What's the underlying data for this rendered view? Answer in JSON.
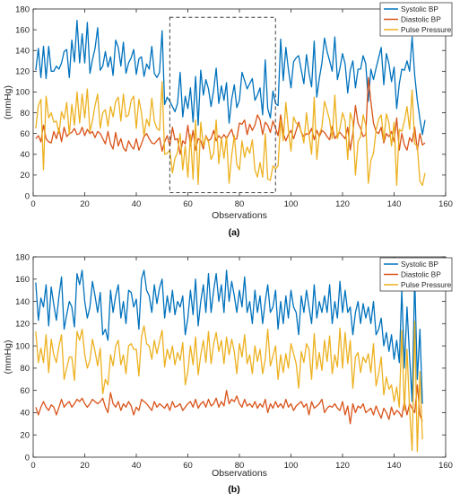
{
  "colors": {
    "systolic": "#0072BD",
    "diastolic": "#D95319",
    "pulse": "#EDB120",
    "axis": "#262626",
    "box": "#404040"
  },
  "chart_data": [
    {
      "type": "line",
      "panel_label": "(a)",
      "xlabel": "Observations",
      "ylabel": "(mmHg)",
      "xlim": [
        0,
        160
      ],
      "ylim": [
        0,
        180
      ],
      "xticks": [
        0,
        20,
        40,
        60,
        80,
        100,
        120,
        140,
        160
      ],
      "yticks": [
        0,
        20,
        40,
        60,
        80,
        100,
        120,
        140,
        160,
        180
      ],
      "grid": false,
      "legend_position": "top-right",
      "highlight_box": {
        "x": [
          53,
          94
        ],
        "y": [
          3,
          172
        ],
        "style": "dashed"
      },
      "series": [
        {
          "name": "Systolic BP",
          "color_key": "systolic",
          "values": [
            121,
            142,
            114,
            144,
            113,
            144,
            120,
            120,
            125,
            122,
            128,
            139,
            141,
            114,
            150,
            129,
            169,
            128,
            156,
            128,
            167,
            118,
            131,
            142,
            162,
            121,
            125,
            139,
            124,
            134,
            116,
            150,
            143,
            125,
            148,
            118,
            128,
            133,
            141,
            117,
            132,
            134,
            115,
            127,
            122,
            144,
            118,
            114,
            119,
            159,
            88,
            95,
            91,
            86,
            81,
            89,
            119,
            76,
            96,
            84,
            104,
            71,
            115,
            68,
            121,
            97,
            112,
            103,
            86,
            102,
            123,
            89,
            106,
            92,
            109,
            70,
            93,
            107,
            85,
            92,
            119,
            111,
            103,
            108,
            113,
            92,
            97,
            104,
            78,
            131,
            84,
            75,
            101,
            89,
            87,
            151,
            111,
            143,
            122,
            104,
            129,
            133,
            135,
            121,
            108,
            136,
            118,
            105,
            149,
            95,
            113,
            128,
            152,
            139,
            130,
            120,
            153,
            112,
            123,
            137,
            127,
            99,
            121,
            130,
            104,
            122,
            122,
            135,
            127,
            91,
            122,
            112,
            123,
            133,
            143,
            107,
            137,
            127,
            110,
            124,
            84,
            108,
            122,
            121,
            130,
            120,
            153,
            116,
            92,
            74,
            59,
            73
          ]
        },
        {
          "name": "Diastolic BP",
          "color_key": "diastolic",
          "values": [
            55,
            58,
            52,
            68,
            55,
            52,
            51,
            62,
            55,
            65,
            52,
            66,
            57,
            60,
            61,
            65,
            59,
            60,
            66,
            58,
            64,
            60,
            62,
            56,
            62,
            60,
            55,
            50,
            62,
            50,
            45,
            61,
            48,
            55,
            46,
            43,
            53,
            48,
            45,
            55,
            44,
            50,
            57,
            60,
            55,
            51,
            50,
            53,
            56,
            43,
            52,
            58,
            48,
            66,
            54,
            55,
            40,
            53,
            50,
            68,
            48,
            63,
            44,
            55,
            53,
            45,
            58,
            53,
            55,
            63,
            53,
            58,
            55,
            59,
            55,
            60,
            64,
            54,
            55,
            70,
            69,
            73,
            59,
            69,
            63,
            68,
            78,
            73,
            59,
            71,
            68,
            61,
            72,
            65,
            58,
            78,
            60,
            53,
            59,
            63,
            55,
            63,
            71,
            61,
            57,
            60,
            59,
            65,
            54,
            63,
            57,
            63,
            61,
            57,
            54,
            67,
            55,
            59,
            61,
            58,
            55,
            66,
            44,
            60,
            87,
            70,
            65,
            57,
            59,
            114,
            91,
            70,
            62,
            60,
            66,
            51,
            60,
            57,
            62,
            52,
            75,
            44,
            60,
            49,
            44,
            56,
            52,
            66,
            44,
            60,
            49,
            51
          ]
        },
        {
          "name": "Pulse Pressure",
          "color_key": "pulse",
          "values": [
            65,
            87,
            93,
            25,
            96,
            75,
            80,
            71,
            72,
            60,
            81,
            74,
            90,
            59,
            88,
            68,
            100,
            70,
            98,
            75,
            103,
            62,
            72,
            87,
            98,
            65,
            80,
            83,
            67,
            86,
            76,
            91,
            95,
            72,
            98,
            76,
            78,
            92,
            96,
            65,
            93,
            80,
            58,
            74,
            67,
            94,
            72,
            65,
            63,
            110,
            40,
            41,
            44,
            22,
            36,
            42,
            60,
            25,
            48,
            18,
            59,
            16,
            73,
            11,
            71,
            48,
            57,
            52,
            35,
            41,
            73,
            31,
            56,
            36,
            57,
            12,
            39,
            58,
            30,
            25,
            53,
            37,
            47,
            41,
            54,
            25,
            18,
            32,
            18,
            60,
            16,
            15,
            29,
            26,
            29,
            73,
            53,
            90,
            64,
            43,
            76,
            70,
            68,
            62,
            51,
            80,
            59,
            40,
            95,
            35,
            59,
            66,
            91,
            82,
            73,
            55,
            97,
            55,
            65,
            80,
            72,
            35,
            80,
            71,
            20,
            52,
            57,
            78,
            68,
            12,
            34,
            41,
            63,
            74,
            78,
            53,
            79,
            70,
            48,
            71,
            10,
            64,
            62,
            72,
            86,
            64,
            102,
            50,
            48,
            14,
            10,
            22
          ]
        }
      ]
    },
    {
      "type": "line",
      "panel_label": "(b)",
      "xlabel": "Observations",
      "ylabel": "(mmHg)",
      "xlim": [
        0,
        160
      ],
      "ylim": [
        0,
        180
      ],
      "xticks": [
        0,
        20,
        40,
        60,
        80,
        100,
        120,
        140,
        160
      ],
      "yticks": [
        0,
        20,
        40,
        60,
        80,
        100,
        120,
        140,
        160,
        180
      ],
      "grid": false,
      "legend_position": "top-right",
      "series": [
        {
          "name": "Systolic BP",
          "color_key": "systolic",
          "values": [
            157,
            123,
            143,
            135,
            155,
            118,
            153,
            137,
            123,
            145,
            162,
            115,
            128,
            140,
            135,
            117,
            165,
            155,
            168,
            140,
            125,
            135,
            158,
            145,
            130,
            148,
            110,
            115,
            105,
            150,
            130,
            145,
            155,
            125,
            140,
            120,
            150,
            148,
            135,
            142,
            115,
            160,
            168,
            150,
            145,
            130,
            155,
            138,
            152,
            160,
            125,
            145,
            130,
            150,
            128,
            140,
            135,
            145,
            110,
            125,
            150,
            128,
            160,
            118,
            140,
            155,
            130,
            165,
            130,
            150,
            165,
            140,
            155,
            130,
            168,
            140,
            158,
            145,
            130,
            150,
            135,
            162,
            130,
            140,
            120,
            150,
            130,
            145,
            120,
            140,
            155,
            130,
            135,
            150,
            115,
            140,
            120,
            145,
            125,
            150,
            135,
            130,
            110,
            145,
            130,
            150,
            135,
            120,
            155,
            125,
            140,
            130,
            145,
            130,
            155,
            120,
            140,
            125,
            158,
            130,
            150,
            130,
            135,
            110,
            130,
            140,
            120,
            138,
            125,
            135,
            120,
            140,
            110,
            115,
            125,
            100,
            112,
            95,
            110,
            88,
            105,
            85,
            150,
            80,
            135,
            90,
            50,
            162,
            70,
            115,
            48
          ]
        },
        {
          "name": "Diastolic BP",
          "color_key": "diastolic",
          "values": [
            45,
            38,
            45,
            50,
            45,
            42,
            47,
            45,
            38,
            45,
            52,
            45,
            48,
            50,
            45,
            48,
            52,
            50,
            53,
            48,
            45,
            48,
            52,
            50,
            48,
            50,
            53,
            45,
            40,
            58,
            48,
            45,
            50,
            42,
            48,
            45,
            50,
            46,
            38,
            45,
            42,
            52,
            50,
            48,
            45,
            42,
            50,
            45,
            48,
            46,
            44,
            48,
            42,
            50,
            45,
            46,
            48,
            42,
            45,
            48,
            50,
            45,
            52,
            44,
            48,
            50,
            45,
            52,
            46,
            48,
            53,
            45,
            50,
            46,
            60,
            48,
            52,
            50,
            55,
            48,
            45,
            52,
            46,
            48,
            45,
            50,
            44,
            48,
            45,
            52,
            40,
            48,
            44,
            50,
            45,
            48,
            44,
            52,
            45,
            48,
            42,
            46,
            48,
            50,
            45,
            48,
            38,
            50,
            44,
            46,
            48,
            52,
            40,
            44,
            46,
            45,
            48,
            44,
            42,
            50,
            38,
            46,
            30,
            48,
            40,
            46,
            44,
            48,
            40,
            42,
            44,
            38,
            46,
            40,
            35,
            44,
            40,
            34,
            45,
            38,
            42,
            40,
            36,
            50,
            38,
            48,
            44,
            40,
            65,
            38,
            32
          ]
        },
        {
          "name": "Pulse Pressure",
          "color_key": "pulse",
          "values": [
            113,
            85,
            98,
            85,
            110,
            76,
            106,
            92,
            85,
            100,
            110,
            70,
            80,
            90,
            90,
            69,
            113,
            105,
            115,
            92,
            80,
            87,
            106,
            95,
            82,
            98,
            57,
            70,
            65,
            92,
            82,
            100,
            105,
            83,
            92,
            75,
            100,
            102,
            97,
            97,
            73,
            108,
            118,
            102,
            100,
            88,
            105,
            93,
            104,
            114,
            81,
            97,
            88,
            100,
            83,
            94,
            87,
            103,
            65,
            77,
            100,
            83,
            108,
            74,
            92,
            105,
            85,
            113,
            84,
            102,
            112,
            95,
            105,
            84,
            108,
            92,
            106,
            95,
            75,
            102,
            90,
            110,
            84,
            92,
            75,
            100,
            86,
            97,
            75,
            88,
            115,
            82,
            91,
            100,
            70,
            92,
            76,
            93,
            80,
            102,
            93,
            84,
            62,
            95,
            85,
            102,
            97,
            70,
            111,
            79,
            94,
            78,
            105,
            86,
            109,
            75,
            92,
            81,
            116,
            80,
            112,
            84,
            105,
            62,
            90,
            94,
            76,
            90,
            85,
            93,
            76,
            102,
            64,
            75,
            90,
            56,
            72,
            61,
            65,
            50,
            63,
            45,
            114,
            42,
            97,
            42,
            6,
            122,
            5,
            77,
            16
          ]
        }
      ]
    }
  ]
}
